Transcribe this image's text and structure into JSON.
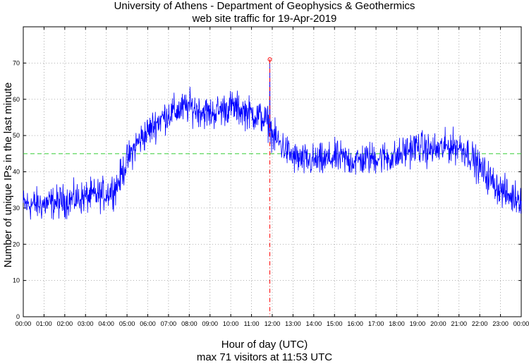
{
  "chart_data": {
    "type": "line",
    "title": "University of Athens - Department of Geophysics & Geothermics",
    "subtitle": "web site traffic for 19-Apr-2019",
    "xlabel": "Hour of day (UTC)",
    "xlabel_sub": "max 71 visitors at 11:53 UTC",
    "ylabel": "Number of unique IPs in the last minute",
    "xlim_minutes": [
      0,
      1440
    ],
    "ylim": [
      0,
      80
    ],
    "x_tick_labels": [
      "00:00",
      "01:00",
      "02:00",
      "03:00",
      "04:00",
      "05:00",
      "06:00",
      "07:00",
      "08:00",
      "09:00",
      "10:00",
      "11:00",
      "12:00",
      "13:00",
      "14:00",
      "15:00",
      "16:00",
      "17:00",
      "18:00",
      "19:00",
      "20:00",
      "21:00",
      "22:00",
      "23:00",
      "00:00"
    ],
    "y_tick_labels": [
      "0",
      "10",
      "20",
      "30",
      "40",
      "50",
      "60",
      "70"
    ],
    "grid": true,
    "average": 45,
    "max_value": 71,
    "max_minute": 713,
    "series": [
      {
        "color": "#0000ff",
        "profile_minute": [
          0,
          60,
          120,
          180,
          240,
          270,
          300,
          330,
          360,
          390,
          420,
          450,
          480,
          510,
          540,
          570,
          600,
          630,
          660,
          690,
          713,
          720,
          750,
          780,
          810,
          840,
          870,
          900,
          960,
          1020,
          1080,
          1110,
          1140,
          1170,
          1200,
          1230,
          1260,
          1290,
          1320,
          1350,
          1380,
          1410,
          1440
        ],
        "profile_value": [
          31,
          31,
          32,
          33,
          34,
          36,
          43,
          48,
          51,
          54,
          56,
          57,
          58,
          57,
          56,
          57,
          58,
          57,
          56,
          55,
          53,
          50,
          47,
          44,
          43,
          43,
          43,
          44,
          43,
          44,
          44,
          46,
          47,
          46,
          46,
          47,
          47,
          45,
          41,
          38,
          35,
          33,
          33
        ],
        "noise_amplitude": 4.5
      }
    ]
  }
}
